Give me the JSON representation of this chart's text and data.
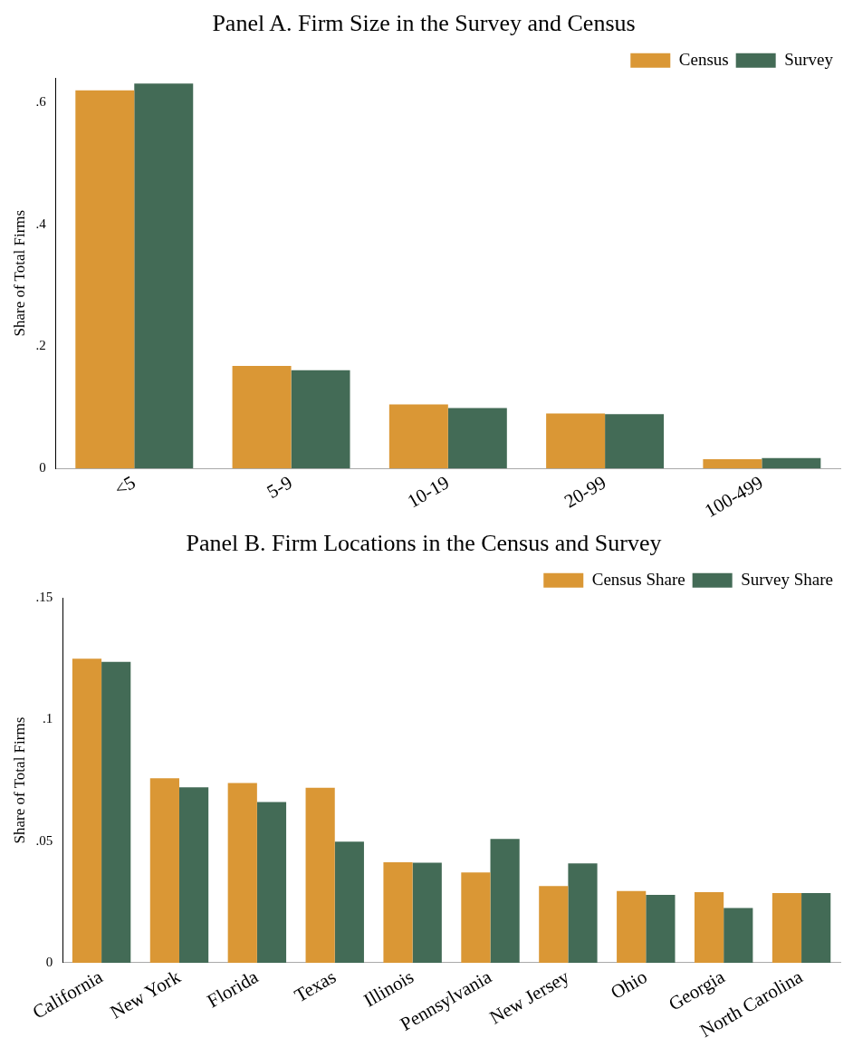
{
  "chart_data": [
    {
      "type": "bar",
      "title": "Panel A. Firm Size in the Survey and Census",
      "ylabel": "Share of Total Firms",
      "categories": [
        "<5",
        "5-9",
        "10-19",
        "20-99",
        "100-499"
      ],
      "series": [
        {
          "name": "Census",
          "color": "#da9735",
          "values": [
            0.62,
            0.168,
            0.105,
            0.09,
            0.015
          ]
        },
        {
          "name": "Survey",
          "color": "#436b56",
          "values": [
            0.631,
            0.161,
            0.099,
            0.089,
            0.017
          ]
        }
      ],
      "ylim": [
        0,
        0.64
      ],
      "yticks": [
        {
          "value": 0,
          "label": "0"
        },
        {
          "value": 0.2,
          "label": ".2"
        },
        {
          "value": 0.4,
          "label": ".4"
        },
        {
          "value": 0.6,
          "label": ".6"
        }
      ],
      "grid": false,
      "legend": "top right"
    },
    {
      "type": "bar",
      "title": "Panel B. Firm Locations in the Census and Survey",
      "ylabel": "Share of Total Firms",
      "categories": [
        "California",
        "New York",
        "Florida",
        "Texas",
        "Illinois",
        "Pennsylvania",
        "New Jersey",
        "Ohio",
        "Georgia",
        "North Carolina"
      ],
      "series": [
        {
          "name": "Census Share",
          "color": "#da9735",
          "values": [
            0.125,
            0.0759,
            0.0739,
            0.0719,
            0.0413,
            0.0371,
            0.0315,
            0.0295,
            0.029,
            0.0286
          ]
        },
        {
          "name": "Survey Share",
          "color": "#436b56",
          "values": [
            0.1237,
            0.0721,
            0.0661,
            0.0498,
            0.0411,
            0.0509,
            0.0408,
            0.0279,
            0.0225,
            0.0286
          ]
        }
      ],
      "ylim": [
        0,
        0.15
      ],
      "yticks": [
        {
          "value": 0,
          "label": "0"
        },
        {
          "value": 0.05,
          "label": ".05"
        },
        {
          "value": 0.1,
          "label": ".1"
        },
        {
          "value": 0.15,
          "label": ".15"
        }
      ],
      "grid": false,
      "legend": "top right"
    }
  ]
}
